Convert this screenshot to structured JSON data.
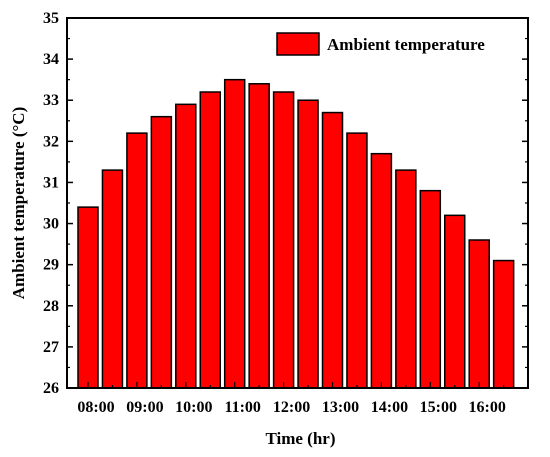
{
  "chart_data": {
    "type": "bar",
    "categories": [
      "08:00",
      "08:30",
      "09:00",
      "09:30",
      "10:00",
      "10:30",
      "11:00",
      "11:30",
      "12:00",
      "12:30",
      "13:00",
      "13:30",
      "14:00",
      "14:30",
      "15:00",
      "15:30",
      "16:00",
      "16:30"
    ],
    "values": [
      30.4,
      31.3,
      32.2,
      32.6,
      32.9,
      33.2,
      33.5,
      33.4,
      33.2,
      33.0,
      32.7,
      32.2,
      31.7,
      31.3,
      30.8,
      30.2,
      29.6,
      29.1
    ],
    "x_tick_labels": [
      "08:00",
      "09:00",
      "10:00",
      "11:00",
      "12:00",
      "13:00",
      "14:00",
      "15:00",
      "16:00"
    ],
    "y_ticks": [
      26,
      27,
      28,
      29,
      30,
      31,
      32,
      33,
      34,
      35
    ],
    "ylim": [
      26,
      35
    ],
    "xlabel": "Time (hr)",
    "ylabel": "Ambient temperature (°C)",
    "title": "",
    "series": [
      {
        "name": "Ambient temperature",
        "color": "#ff0000"
      }
    ],
    "legend_position": "top-right",
    "grid": false
  }
}
